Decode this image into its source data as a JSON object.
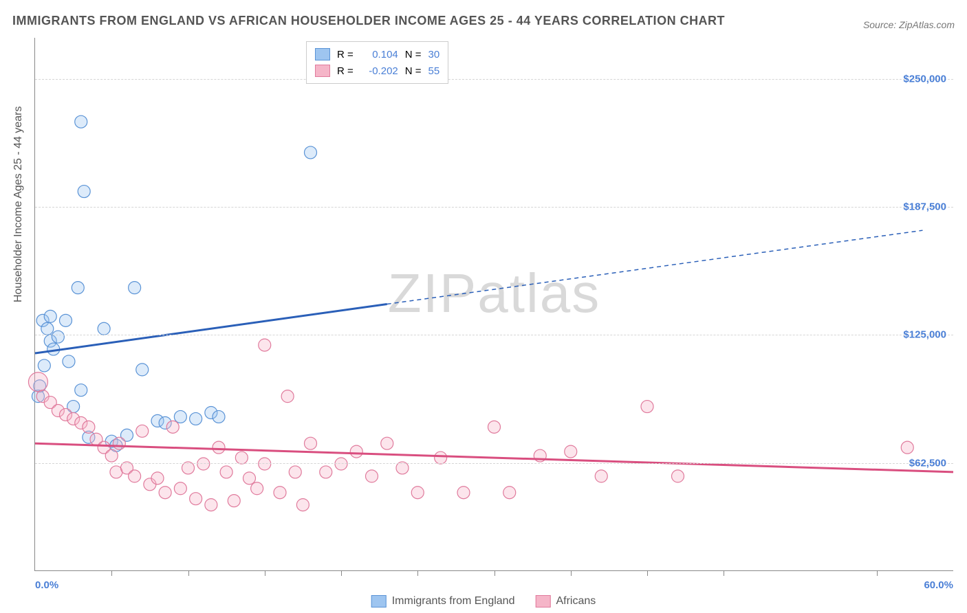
{
  "title": "IMMIGRANTS FROM ENGLAND VS AFRICAN HOUSEHOLDER INCOME AGES 25 - 44 YEARS CORRELATION CHART",
  "source": "Source: ZipAtlas.com",
  "watermark_a": "ZIP",
  "watermark_b": "atlas",
  "y_axis_title": "Householder Income Ages 25 - 44 years",
  "chart": {
    "type": "scatter",
    "xlim": [
      0,
      60
    ],
    "ylim": [
      10000,
      270000
    ],
    "x_min_label": "0.0%",
    "x_max_label": "60.0%",
    "x_tick_positions": [
      5,
      10,
      15,
      20,
      25,
      30,
      35,
      40,
      45,
      55
    ],
    "y_ticks": [
      {
        "value": 62500,
        "label": "$62,500"
      },
      {
        "value": 125000,
        "label": "$125,000"
      },
      {
        "value": 187500,
        "label": "$187,500"
      },
      {
        "value": 250000,
        "label": "$250,000"
      }
    ],
    "background_color": "#ffffff",
    "grid_color": "#d5d5d5",
    "tick_label_color": "#4a7fd6",
    "x_label_color": "#4a7fd6",
    "marker_radius": 9,
    "marker_stroke_width": 1.2,
    "marker_fill_opacity": 0.35,
    "series": [
      {
        "name": "Immigrants from England",
        "legend_name": "Immigrants from England",
        "color_fill": "#9ec5f0",
        "color_stroke": "#5a93d6",
        "trend_color": "#2a5fb8",
        "trend_width": 3,
        "R_label": "R =",
        "R": "0.104",
        "N_label": "N =",
        "N": "30",
        "trend": {
          "x1": 0,
          "y1": 116000,
          "x2_solid": 23,
          "y2_solid": 140000,
          "x2": 58,
          "y2": 176000
        },
        "points": [
          {
            "x": 0.5,
            "y": 132000
          },
          {
            "x": 0.8,
            "y": 128000
          },
          {
            "x": 1.0,
            "y": 122000
          },
          {
            "x": 1.2,
            "y": 118000
          },
          {
            "x": 1.0,
            "y": 134000
          },
          {
            "x": 0.3,
            "y": 100000
          },
          {
            "x": 0.2,
            "y": 95000
          },
          {
            "x": 0.6,
            "y": 110000
          },
          {
            "x": 1.5,
            "y": 124000
          },
          {
            "x": 2.0,
            "y": 132000
          },
          {
            "x": 2.2,
            "y": 112000
          },
          {
            "x": 2.5,
            "y": 90000
          },
          {
            "x": 3.0,
            "y": 98000
          },
          {
            "x": 4.5,
            "y": 128000
          },
          {
            "x": 3.5,
            "y": 75000
          },
          {
            "x": 5.0,
            "y": 73000
          },
          {
            "x": 5.3,
            "y": 71000
          },
          {
            "x": 6.0,
            "y": 76000
          },
          {
            "x": 7.0,
            "y": 108000
          },
          {
            "x": 8.0,
            "y": 83000
          },
          {
            "x": 8.5,
            "y": 82000
          },
          {
            "x": 9.5,
            "y": 85000
          },
          {
            "x": 10.5,
            "y": 84000
          },
          {
            "x": 11.5,
            "y": 87000
          },
          {
            "x": 12.0,
            "y": 85000
          },
          {
            "x": 2.8,
            "y": 148000
          },
          {
            "x": 6.5,
            "y": 148000
          },
          {
            "x": 3.0,
            "y": 229000
          },
          {
            "x": 3.2,
            "y": 195000
          },
          {
            "x": 18.0,
            "y": 214000
          }
        ]
      },
      {
        "name": "Africans",
        "legend_name": "Africans",
        "color_fill": "#f5b5c8",
        "color_stroke": "#e07a9c",
        "trend_color": "#d94e7f",
        "trend_width": 3,
        "R_label": "R =",
        "R": "-0.202",
        "N_label": "N =",
        "N": "55",
        "trend": {
          "x1": 0,
          "y1": 72000,
          "x2_solid": 60,
          "y2_solid": 58000,
          "x2": 60,
          "y2": 58000
        },
        "points": [
          {
            "x": 0.2,
            "y": 102000,
            "r": 14
          },
          {
            "x": 0.5,
            "y": 95000
          },
          {
            "x": 1.0,
            "y": 92000
          },
          {
            "x": 1.5,
            "y": 88000
          },
          {
            "x": 2.0,
            "y": 86000
          },
          {
            "x": 2.5,
            "y": 84000
          },
          {
            "x": 3.0,
            "y": 82000
          },
          {
            "x": 3.5,
            "y": 80000
          },
          {
            "x": 4.0,
            "y": 74000
          },
          {
            "x": 4.5,
            "y": 70000
          },
          {
            "x": 5.0,
            "y": 66000
          },
          {
            "x": 5.3,
            "y": 58000
          },
          {
            "x": 5.5,
            "y": 72000
          },
          {
            "x": 6.0,
            "y": 60000
          },
          {
            "x": 6.5,
            "y": 56000
          },
          {
            "x": 7.0,
            "y": 78000
          },
          {
            "x": 7.5,
            "y": 52000
          },
          {
            "x": 8.0,
            "y": 55000
          },
          {
            "x": 8.5,
            "y": 48000
          },
          {
            "x": 9.0,
            "y": 80000
          },
          {
            "x": 9.5,
            "y": 50000
          },
          {
            "x": 10.0,
            "y": 60000
          },
          {
            "x": 10.5,
            "y": 45000
          },
          {
            "x": 11.0,
            "y": 62000
          },
          {
            "x": 11.5,
            "y": 42000
          },
          {
            "x": 12.0,
            "y": 70000
          },
          {
            "x": 12.5,
            "y": 58000
          },
          {
            "x": 13.0,
            "y": 44000
          },
          {
            "x": 13.5,
            "y": 65000
          },
          {
            "x": 14.0,
            "y": 55000
          },
          {
            "x": 14.5,
            "y": 50000
          },
          {
            "x": 15.0,
            "y": 62000
          },
          {
            "x": 15.0,
            "y": 120000
          },
          {
            "x": 16.0,
            "y": 48000
          },
          {
            "x": 16.5,
            "y": 95000
          },
          {
            "x": 17.0,
            "y": 58000
          },
          {
            "x": 17.5,
            "y": 42000
          },
          {
            "x": 18.0,
            "y": 72000
          },
          {
            "x": 19.0,
            "y": 58000
          },
          {
            "x": 20.0,
            "y": 62000
          },
          {
            "x": 21.0,
            "y": 68000
          },
          {
            "x": 22.0,
            "y": 56000
          },
          {
            "x": 23.0,
            "y": 72000
          },
          {
            "x": 24.0,
            "y": 60000
          },
          {
            "x": 25.0,
            "y": 48000
          },
          {
            "x": 26.5,
            "y": 65000
          },
          {
            "x": 28.0,
            "y": 48000
          },
          {
            "x": 30.0,
            "y": 80000
          },
          {
            "x": 31.0,
            "y": 48000
          },
          {
            "x": 33.0,
            "y": 66000
          },
          {
            "x": 35.0,
            "y": 68000
          },
          {
            "x": 37.0,
            "y": 56000
          },
          {
            "x": 40.0,
            "y": 90000
          },
          {
            "x": 42.0,
            "y": 56000
          },
          {
            "x": 57.0,
            "y": 70000
          }
        ]
      }
    ]
  }
}
